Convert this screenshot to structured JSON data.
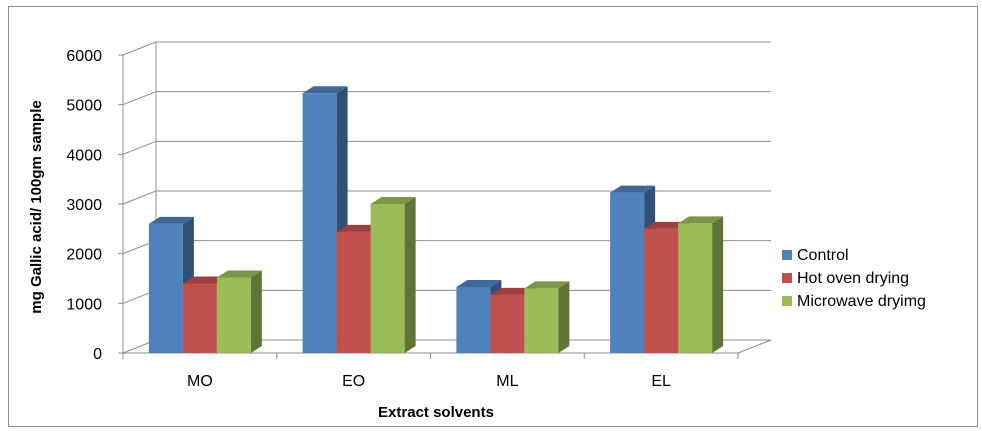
{
  "chart_data": {
    "type": "bar",
    "style": "3d-clustered-column",
    "title": "",
    "xlabel": "Extract solvents",
    "ylabel": "mg Gallic acid/ 100gm sample",
    "categories": [
      "MO",
      "EO",
      "ML",
      "EL"
    ],
    "ylim": [
      0,
      6000
    ],
    "yticks": [
      "0",
      "1000",
      "2000",
      "3000",
      "4000",
      "5000",
      "6000"
    ],
    "grid": true,
    "legend_position": "right",
    "series": [
      {
        "name": "Control",
        "values": [
          2600,
          5230,
          1330,
          3230
        ],
        "color": "#4f81bd"
      },
      {
        "name": "Hot oven drying",
        "values": [
          1400,
          2440,
          1170,
          2500
        ],
        "color": "#c0504d"
      },
      {
        "name": "Microwave dryimg",
        "values": [
          1520,
          3000,
          1300,
          2610
        ],
        "color": "#9bbb59"
      }
    ]
  }
}
